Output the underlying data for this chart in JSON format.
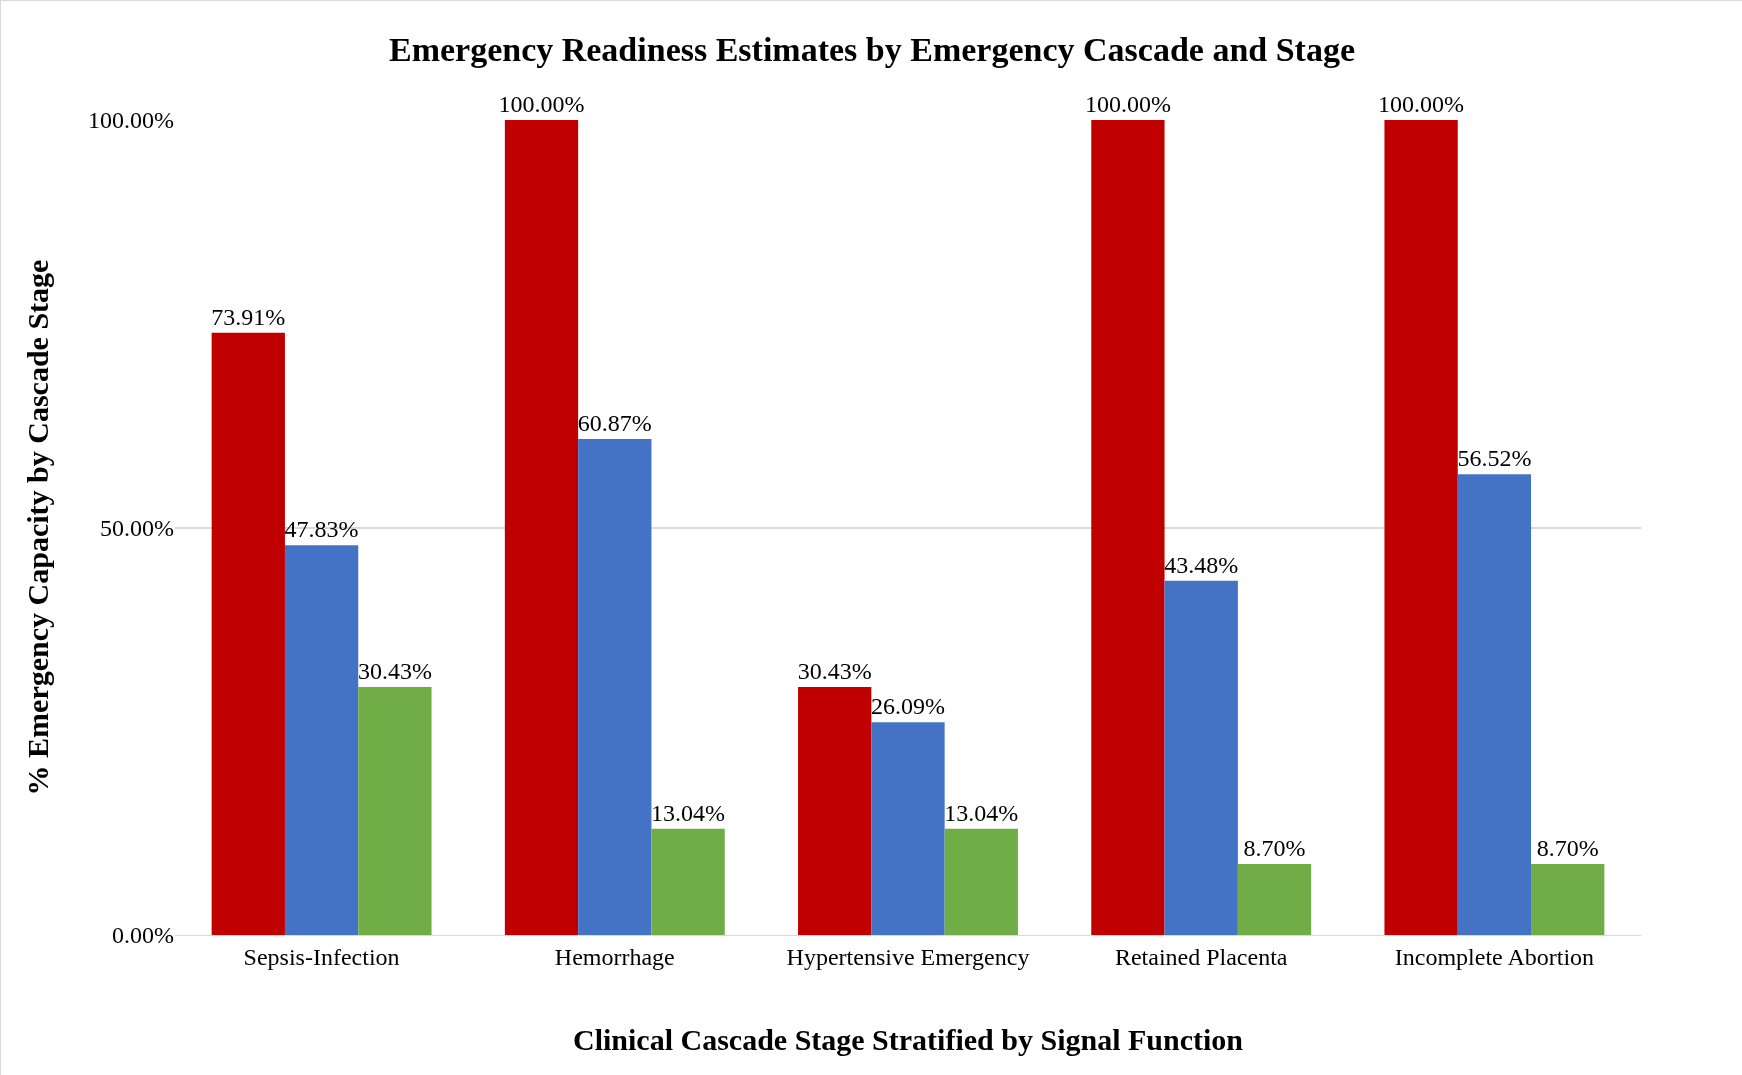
{
  "chart_data": {
    "type": "bar",
    "title": "Emergency Readiness Estimates by Emergency Cascade and Stage",
    "xlabel": "Clinical Cascade Stage Stratified by Signal Function",
    "ylabel": "% Emergency Capacity by Cascade Stage",
    "categories": [
      "Sepsis-Infection",
      "Hemorrhage",
      "Hypertensive Emergency",
      "Retained Placenta",
      "Incomplete Abortion"
    ],
    "series": [
      {
        "color": "#c00000",
        "values": [
          73.91,
          100,
          30.43,
          100,
          100
        ],
        "value_labels": [
          "73.91%",
          "100.00%",
          "30.43%",
          "100.00%",
          "100.00%"
        ]
      },
      {
        "color": "#4472c4",
        "values": [
          47.83,
          60.87,
          26.09,
          43.48,
          56.52
        ],
        "value_labels": [
          "47.83%",
          "60.87%",
          "26.09%",
          "43.48%",
          "56.52%"
        ]
      },
      {
        "color": "#70ad47",
        "values": [
          30.43,
          13.04,
          13.04,
          8.7,
          8.7
        ],
        "value_labels": [
          "30.43%",
          "13.04%",
          "13.04%",
          "8.70%",
          "8.70%"
        ]
      }
    ],
    "ylim": [
      0,
      100
    ],
    "yticks": [
      {
        "value": 0,
        "label": "0.00%"
      },
      {
        "value": 50,
        "label": "50.00%"
      },
      {
        "value": 100,
        "label": "100.00%"
      }
    ],
    "grid": "y"
  }
}
